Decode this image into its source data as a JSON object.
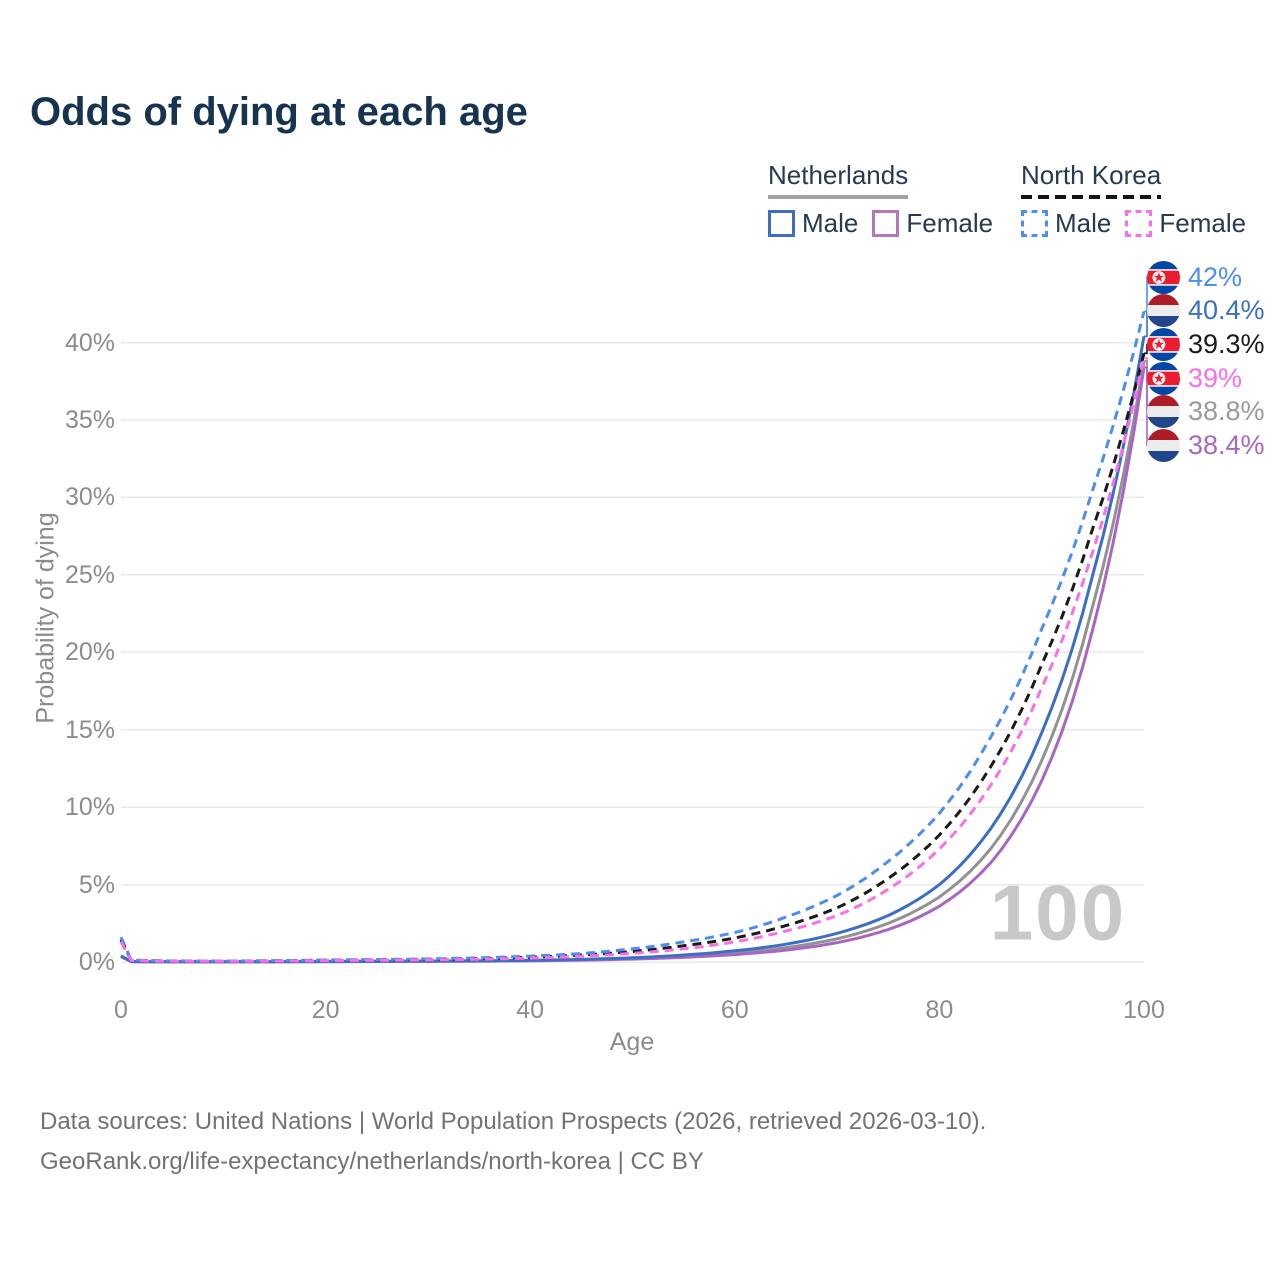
{
  "title": "Odds of dying at each age",
  "legend": {
    "groups": [
      {
        "id": "netherlands",
        "label": "Netherlands",
        "underline_style": "solid",
        "underline_color": "#a3a3a3",
        "items": [
          {
            "id": "nl-male",
            "label": "Male",
            "color": "#3a6fc4",
            "dashed": false
          },
          {
            "id": "nl-female",
            "label": "Female",
            "color": "#b478b8",
            "dashed": false
          }
        ]
      },
      {
        "id": "north-korea",
        "label": "North Korea",
        "underline_style": "dashed",
        "underline_color": "#141414",
        "items": [
          {
            "id": "nk-male",
            "label": "Male",
            "color": "#4c8df2",
            "dashed": true
          },
          {
            "id": "nk-female",
            "label": "Female",
            "color": "#fb6ee6",
            "dashed": true
          }
        ]
      }
    ]
  },
  "chart_data": {
    "type": "line",
    "title": "Odds of dying at each age",
    "xlabel": "Age",
    "ylabel": "Probability of dying",
    "xlim": [
      0,
      100
    ],
    "ylim_pct": [
      0,
      42
    ],
    "grid": "horizontal",
    "legend_position": "top-right",
    "xticks": [
      0,
      20,
      40,
      60,
      80,
      100
    ],
    "yticks_pct": [
      0,
      5,
      10,
      15,
      20,
      25,
      30,
      35,
      40
    ],
    "ytick_labels": [
      "0%",
      "5%",
      "10%",
      "15%",
      "20%",
      "25%",
      "30%",
      "35%",
      "40%"
    ],
    "watermark": "100",
    "x": [
      0,
      1,
      5,
      10,
      15,
      20,
      25,
      30,
      35,
      40,
      45,
      50,
      55,
      60,
      65,
      70,
      75,
      80,
      85,
      90,
      95,
      100
    ],
    "series": [
      {
        "id": "nk-male",
        "name": "North Korea Male",
        "color": "#4c8df2",
        "dashed": true,
        "values_pct": [
          1.6,
          0.12,
          0.07,
          0.06,
          0.09,
          0.13,
          0.16,
          0.2,
          0.27,
          0.38,
          0.55,
          0.85,
          1.3,
          1.9,
          2.9,
          4.3,
          6.5,
          9.6,
          14.5,
          21.5,
          30.5,
          42
        ],
        "end_label": {
          "text": "42%",
          "color": "#4c8df2",
          "flag": "north-korea"
        }
      },
      {
        "id": "nl-male",
        "name": "Netherlands Male",
        "color": "#3a6fc4",
        "dashed": false,
        "values_pct": [
          0.4,
          0.03,
          0.012,
          0.012,
          0.02,
          0.04,
          0.05,
          0.06,
          0.08,
          0.11,
          0.17,
          0.27,
          0.45,
          0.72,
          1.15,
          1.85,
          3.0,
          5.0,
          8.6,
          14.8,
          25,
          40.4
        ],
        "end_label": {
          "text": "40.4%",
          "color": "#3a6fc4",
          "flag": "netherlands"
        }
      },
      {
        "id": "nk-both",
        "name": "North Korea",
        "color": "#1a1a1a",
        "dashed": true,
        "values_pct": [
          1.45,
          0.11,
          0.06,
          0.05,
          0.08,
          0.11,
          0.13,
          0.17,
          0.22,
          0.31,
          0.45,
          0.68,
          1.05,
          1.55,
          2.35,
          3.5,
          5.4,
          8.2,
          12.6,
          19.2,
          28,
          39.3
        ],
        "end_label": {
          "text": "39.3%",
          "color": "#1a1a1a",
          "flag": "north-korea"
        }
      },
      {
        "id": "nk-female",
        "name": "North Korea Female",
        "color": "#fb6ee6",
        "dashed": true,
        "values_pct": [
          1.3,
          0.1,
          0.05,
          0.045,
          0.065,
          0.09,
          0.11,
          0.14,
          0.18,
          0.25,
          0.37,
          0.56,
          0.85,
          1.3,
          2.0,
          3.0,
          4.7,
          7.3,
          11.4,
          17.7,
          26.5,
          39
        ],
        "end_label": {
          "text": "39%",
          "color": "#fb6ee6",
          "flag": "north-korea"
        }
      },
      {
        "id": "nl-both",
        "name": "Netherlands",
        "color": "#929292",
        "dashed": false,
        "values_pct": [
          0.38,
          0.025,
          0.01,
          0.01,
          0.016,
          0.03,
          0.04,
          0.05,
          0.065,
          0.09,
          0.14,
          0.22,
          0.36,
          0.58,
          0.93,
          1.5,
          2.5,
          4.2,
          7.3,
          13,
          23,
          38.8
        ],
        "end_label": {
          "text": "38.8%",
          "color": "#9a9a9a",
          "flag": "netherlands"
        }
      },
      {
        "id": "nl-female",
        "name": "Netherlands Female",
        "color": "#a966c1",
        "dashed": false,
        "values_pct": [
          0.35,
          0.02,
          0.009,
          0.009,
          0.013,
          0.02,
          0.03,
          0.04,
          0.055,
          0.08,
          0.12,
          0.19,
          0.3,
          0.48,
          0.77,
          1.25,
          2.1,
          3.6,
          6.4,
          11.7,
          21.5,
          38.4
        ],
        "end_label": {
          "text": "38.4%",
          "color": "#a966c1",
          "flag": "netherlands"
        }
      }
    ],
    "flag_colors": {
      "netherlands": {
        "red": "#AE1C28",
        "white": "#ececec",
        "blue": "#21468B"
      },
      "north_korea": {
        "blue": "#0247a6",
        "white": "#f2f2f2",
        "red": "#eb1c2d"
      }
    },
    "gridline_color": "#eaeaea"
  },
  "footer": {
    "line1": "Data sources: United Nations | World Population Prospects (2026, retrieved 2026-03-10).",
    "line2": "GeoRank.org/life-expectancy/netherlands/north-korea | CC BY"
  }
}
